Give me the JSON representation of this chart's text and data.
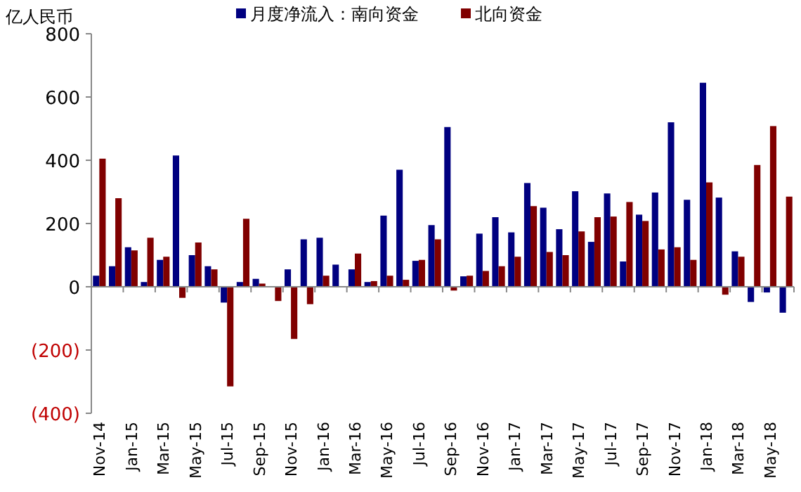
{
  "chart_data": {
    "type": "bar",
    "ylabel": "亿人民币",
    "categories": [
      "Nov-14",
      null,
      "Jan-15",
      null,
      "Mar-15",
      null,
      "May-15",
      null,
      "Jul-15",
      null,
      "Sep-15",
      null,
      "Nov-15",
      null,
      "Jan-16",
      null,
      "Mar-16",
      null,
      "May-16",
      null,
      "Jul-16",
      null,
      "Sep-16",
      null,
      "Nov-16",
      null,
      "Jan-17",
      null,
      "Mar-17",
      null,
      "May-17",
      null,
      "Jul-17",
      null,
      "Sep-17",
      null,
      "Nov-17",
      null,
      "Jan-18",
      null,
      "Mar-18",
      null,
      "May-18",
      null
    ],
    "series": [
      {
        "name": "月度净流入：南向资金",
        "color": "#000080",
        "values": [
          35,
          65,
          125,
          15,
          85,
          415,
          100,
          65,
          -50,
          15,
          25,
          null,
          55,
          150,
          155,
          70,
          55,
          15,
          225,
          370,
          82,
          195,
          505,
          33,
          168,
          220,
          172,
          328,
          250,
          182,
          302,
          142,
          295,
          80,
          228,
          298,
          520,
          275,
          645,
          282,
          112,
          -48,
          -18,
          -82
        ]
      },
      {
        "name": "北向资金",
        "color": "#800000",
        "values": [
          405,
          280,
          115,
          155,
          95,
          -35,
          140,
          55,
          -315,
          215,
          10,
          -45,
          -165,
          -55,
          35,
          0,
          105,
          18,
          35,
          22,
          85,
          150,
          -12,
          35,
          50,
          65,
          95,
          255,
          110,
          100,
          175,
          220,
          222,
          268,
          208,
          118,
          125,
          85,
          330,
          -25,
          95,
          385,
          508,
          285
        ]
      }
    ],
    "ylim": [
      -400,
      800
    ],
    "yticks": [
      800,
      600,
      400,
      200,
      0,
      {
        "value": -200,
        "label": "(200)"
      },
      {
        "value": -400,
        "label": "(400)"
      }
    ],
    "legend": "top"
  }
}
